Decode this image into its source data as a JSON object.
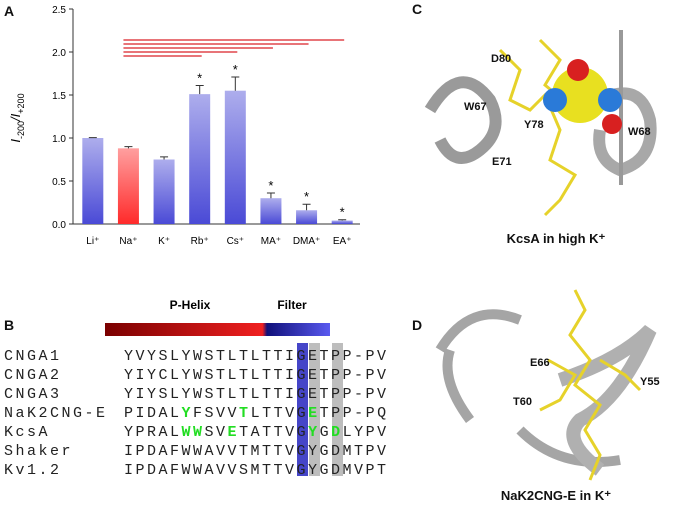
{
  "chart_data": {
    "type": "bar",
    "panel_label": "A",
    "ylabel_parts": [
      "I",
      "-200",
      "/I",
      "+200"
    ],
    "categories": [
      "Li⁺",
      "Na⁺",
      "K⁺",
      "Rb⁺",
      "Cs⁺",
      "MA⁺",
      "DMA⁺",
      "EA⁺"
    ],
    "values": [
      1.0,
      0.88,
      0.75,
      1.51,
      1.55,
      0.3,
      0.16,
      0.04
    ],
    "errors": [
      0.005,
      0.02,
      0.03,
      0.1,
      0.16,
      0.06,
      0.07,
      0.01
    ],
    "colors": [
      "#4a4ad6",
      "#ff2a2a",
      "#4a4ad6",
      "#4a4ad6",
      "#4a4ad6",
      "#4a4ad6",
      "#4a4ad6",
      "#4a4ad6"
    ],
    "markers": [
      null,
      null,
      null,
      "*",
      "*",
      "*",
      "*",
      "*"
    ],
    "comparison_color": "#e0474c",
    "ylim": [
      0,
      2.5
    ],
    "yticks": [
      {
        "value": 0,
        "label": "0.0"
      },
      0.5,
      {
        "value": 1,
        "label": "1.0"
      },
      1.5,
      {
        "value": 2,
        "label": "2.0"
      },
      2.5
    ]
  },
  "alignment": {
    "panel_label": "B",
    "regions": [
      "P-Helix",
      "Filter"
    ],
    "rows": [
      {
        "name": "CNGA1",
        "segments": [
          {
            "text": "YVYSLYWSTLTLTTIGETPP-PV",
            "green": false
          }
        ]
      },
      {
        "name": "CNGA2",
        "segments": [
          {
            "text": "YIYCLYWSTLTLTTIGETPP-PV",
            "green": false
          }
        ]
      },
      {
        "name": "CNGA3",
        "segments": [
          {
            "text": "YIYSLYWSTLTLTTIGETPP-PV",
            "green": false
          }
        ]
      },
      {
        "name": "NaK2CNG-E",
        "segments": [
          {
            "text": "PIDAL",
            "green": false
          },
          {
            "text": "Y",
            "green": true
          },
          {
            "text": "FSVV",
            "green": false
          },
          {
            "text": "T",
            "green": true
          },
          {
            "text": "LTTVG",
            "green": false
          },
          {
            "text": "E",
            "green": true
          },
          {
            "text": "TPP-PQ",
            "green": false
          }
        ]
      },
      {
        "name": "KcsA",
        "segments": [
          {
            "text": "YPRAL",
            "green": false
          },
          {
            "text": "WW",
            "green": true
          },
          {
            "text": "SV",
            "green": false
          },
          {
            "text": "E",
            "green": true
          },
          {
            "text": "TATTVG",
            "green": false
          },
          {
            "text": "Y",
            "green": true
          },
          {
            "text": "G",
            "green": false
          },
          {
            "text": "D",
            "green": true
          },
          {
            "text": "LYPV",
            "green": false
          }
        ]
      },
      {
        "name": "Shaker",
        "segments": [
          {
            "text": "IPDAFWWAVVTMTTVGYGDMTPV",
            "green": false
          }
        ]
      },
      {
        "name": "Kv1.2",
        "segments": [
          {
            "text": "IPDAFWWAVVSMTTVGYGDMVPT",
            "green": false
          }
        ]
      }
    ]
  },
  "structure_c": {
    "panel_label": "C",
    "labels": [
      "D80",
      "W67",
      "E71",
      "Y78",
      "W68"
    ],
    "caption": "KcsA in high K⁺"
  },
  "structure_d": {
    "panel_label": "D",
    "labels": [
      "E66",
      "Y55",
      "T60"
    ],
    "caption": "NaK2CNG-E in K⁺"
  }
}
